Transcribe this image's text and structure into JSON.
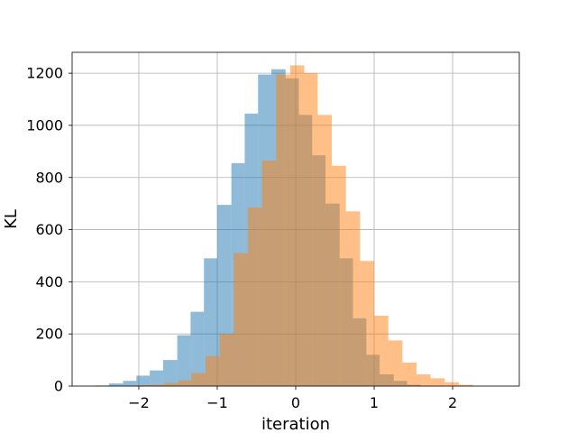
{
  "chart_data": {
    "type": "histogram",
    "xlabel": "iteration",
    "ylabel": "KL",
    "xlim": [
      -2.85,
      2.85
    ],
    "ylim": [
      0,
      1280
    ],
    "x_ticks": [
      -2,
      -1,
      0,
      1,
      2
    ],
    "x_tick_labels": [
      "−2",
      "−1",
      "0",
      "1",
      "2"
    ],
    "y_ticks": [
      0,
      200,
      400,
      600,
      800,
      1000,
      1200
    ],
    "y_tick_labels": [
      "0",
      "200",
      "400",
      "600",
      "800",
      "1000",
      "1200"
    ],
    "grid": true,
    "colors": {
      "series_1": "#1f77b4",
      "series_2": "#ff7f0e",
      "grid": "#b0b0b0",
      "frame": "#000000"
    },
    "opacity": 0.5,
    "series": [
      {
        "bins": [
          {
            "x0": -2.55,
            "x1": -2.38,
            "value": 2
          },
          {
            "x0": -2.38,
            "x1": -2.2,
            "value": 10
          },
          {
            "x0": -2.2,
            "x1": -2.03,
            "value": 20
          },
          {
            "x0": -2.03,
            "x1": -1.86,
            "value": 40
          },
          {
            "x0": -1.86,
            "x1": -1.69,
            "value": 60
          },
          {
            "x0": -1.69,
            "x1": -1.51,
            "value": 100
          },
          {
            "x0": -1.51,
            "x1": -1.34,
            "value": 195
          },
          {
            "x0": -1.34,
            "x1": -1.17,
            "value": 285
          },
          {
            "x0": -1.17,
            "x1": -1.0,
            "value": 490
          },
          {
            "x0": -1.0,
            "x1": -0.82,
            "value": 695
          },
          {
            "x0": -0.82,
            "x1": -0.65,
            "value": 855
          },
          {
            "x0": -0.65,
            "x1": -0.48,
            "value": 1045
          },
          {
            "x0": -0.48,
            "x1": -0.31,
            "value": 1195
          },
          {
            "x0": -0.31,
            "x1": -0.13,
            "value": 1215
          },
          {
            "x0": -0.13,
            "x1": 0.04,
            "value": 1180
          },
          {
            "x0": 0.04,
            "x1": 0.21,
            "value": 1040
          },
          {
            "x0": 0.21,
            "x1": 0.38,
            "value": 885
          },
          {
            "x0": 0.38,
            "x1": 0.56,
            "value": 700
          },
          {
            "x0": 0.56,
            "x1": 0.73,
            "value": 490
          },
          {
            "x0": 0.73,
            "x1": 0.9,
            "value": 260
          },
          {
            "x0": 0.9,
            "x1": 1.07,
            "value": 120
          },
          {
            "x0": 1.07,
            "x1": 1.25,
            "value": 45
          },
          {
            "x0": 1.25,
            "x1": 1.42,
            "value": 20
          },
          {
            "x0": 1.42,
            "x1": 1.59,
            "value": 5
          },
          {
            "x0": 1.59,
            "x1": 1.76,
            "value": 2
          }
        ]
      },
      {
        "bins": [
          {
            "x0": -2.22,
            "x1": -2.04,
            "value": 2
          },
          {
            "x0": -2.04,
            "x1": -1.86,
            "value": 3
          },
          {
            "x0": -1.86,
            "x1": -1.68,
            "value": 5
          },
          {
            "x0": -1.68,
            "x1": -1.5,
            "value": 12
          },
          {
            "x0": -1.5,
            "x1": -1.33,
            "value": 22
          },
          {
            "x0": -1.33,
            "x1": -1.15,
            "value": 50
          },
          {
            "x0": -1.15,
            "x1": -0.97,
            "value": 115
          },
          {
            "x0": -0.97,
            "x1": -0.79,
            "value": 200
          },
          {
            "x0": -0.79,
            "x1": -0.61,
            "value": 510
          },
          {
            "x0": -0.61,
            "x1": -0.43,
            "value": 685
          },
          {
            "x0": -0.43,
            "x1": -0.25,
            "value": 865
          },
          {
            "x0": -0.25,
            "x1": -0.07,
            "value": 1195
          },
          {
            "x0": -0.07,
            "x1": 0.11,
            "value": 1230
          },
          {
            "x0": 0.11,
            "x1": 0.28,
            "value": 1200
          },
          {
            "x0": 0.28,
            "x1": 0.46,
            "value": 1040
          },
          {
            "x0": 0.46,
            "x1": 0.64,
            "value": 845
          },
          {
            "x0": 0.64,
            "x1": 0.82,
            "value": 670
          },
          {
            "x0": 0.82,
            "x1": 1.0,
            "value": 480
          },
          {
            "x0": 1.0,
            "x1": 1.18,
            "value": 270
          },
          {
            "x0": 1.18,
            "x1": 1.36,
            "value": 175
          },
          {
            "x0": 1.36,
            "x1": 1.54,
            "value": 90
          },
          {
            "x0": 1.54,
            "x1": 1.72,
            "value": 45
          },
          {
            "x0": 1.72,
            "x1": 1.9,
            "value": 30
          },
          {
            "x0": 1.9,
            "x1": 2.08,
            "value": 15
          },
          {
            "x0": 2.08,
            "x1": 2.26,
            "value": 5
          }
        ]
      }
    ]
  }
}
